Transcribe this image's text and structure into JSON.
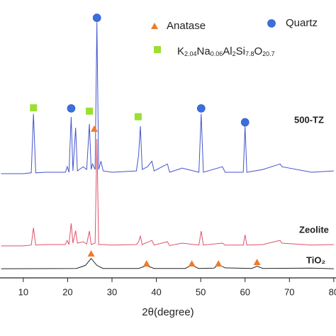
{
  "chart_data": {
    "type": "line",
    "x_label": "2θ(degree)",
    "xlim": [
      4.75,
      80.5
    ],
    "xticks": [
      10,
      20,
      30,
      40,
      50,
      60,
      70,
      80
    ],
    "ylim": [
      0,
      100
    ],
    "series": [
      {
        "name": "500-TZ",
        "color": "#4455cc",
        "x": [
          5,
          10,
          11.8,
          12.3,
          12.8,
          15,
          19.5,
          19.9,
          20.3,
          20.8,
          21.2,
          21.8,
          22.2,
          23.5,
          24.3,
          24.9,
          25.3,
          25.6,
          26.2,
          26.6,
          27,
          27.5,
          28,
          30,
          35.5,
          36,
          36.4,
          36.8,
          38,
          39,
          39.5,
          42.5,
          43,
          45.8,
          49.6,
          50.1,
          50.6,
          54.9,
          55.5,
          59.6,
          60,
          60.4,
          64,
          67.9,
          68.3,
          75,
          80
        ],
        "values": [
          37.5,
          37.5,
          37.8,
          59,
          37.8,
          38,
          38,
          40,
          38,
          57.9,
          38.5,
          54,
          38.5,
          40,
          39,
          55.4,
          39,
          41,
          39,
          92,
          39,
          42,
          38.5,
          38,
          38.5,
          44,
          54.6,
          39,
          40,
          42,
          38.5,
          41,
          38,
          39.5,
          38,
          59,
          38,
          40,
          38,
          38,
          54.6,
          38,
          39,
          41,
          40,
          38,
          38.5
        ]
      },
      {
        "name": "Zeolite",
        "color": "#e0506a",
        "x": [
          5,
          10,
          11.8,
          12.3,
          12.8,
          15,
          19.5,
          19.9,
          20.3,
          20.8,
          21.2,
          21.8,
          22.2,
          23.5,
          24.3,
          24.9,
          25.3,
          26.2,
          26.6,
          27,
          28,
          30,
          35.5,
          36,
          36.4,
          36.8,
          38,
          39,
          39.5,
          42.5,
          43,
          45.8,
          49.6,
          50.1,
          50.6,
          54.9,
          55.5,
          59.6,
          60,
          60.4,
          64,
          67.9,
          68.3,
          75,
          80
        ],
        "values": [
          11.5,
          11.5,
          11.8,
          18,
          11.8,
          12,
          12,
          13.5,
          12,
          19.6,
          12.5,
          17,
          12.5,
          13,
          12.2,
          16.8,
          12,
          12.5,
          50,
          12,
          12,
          11.8,
          12,
          13,
          15,
          12,
          12.8,
          13.5,
          11.8,
          13,
          11.6,
          12.5,
          11.8,
          16.8,
          11.8,
          12.5,
          11.8,
          11.8,
          15.5,
          11.8,
          12,
          13.5,
          12.5,
          11.8,
          12
        ]
      },
      {
        "name": "TiO₂",
        "color": "#222222",
        "x": [
          5,
          22,
          24,
          25.3,
          26.6,
          28,
          36,
          37.8,
          39.5,
          46.5,
          48,
          49.5,
          53,
          54,
          55.5,
          61.5,
          62.7,
          64,
          75,
          80
        ],
        "values": [
          3.3,
          3.4,
          4.5,
          7,
          4.5,
          3.4,
          3.4,
          4.4,
          3.4,
          3.4,
          4.6,
          3.4,
          3.5,
          4.8,
          3.6,
          3.4,
          4.2,
          3.4,
          3.5,
          3.3
        ]
      }
    ],
    "markers": [
      {
        "name": "Anatase",
        "color": "#f07a2a",
        "shape": "triangle",
        "x": [
          25.3,
          37.8,
          48,
          54,
          62.7,
          26
        ],
        "y": [
          8.7,
          5.1,
          5.1,
          5.1,
          5.6,
          53.6
        ]
      },
      {
        "name": "Quartz",
        "color": "#3b6fe0",
        "shape": "circle",
        "x": [
          26.6,
          20.8,
          50.1,
          60
        ],
        "y": [
          93.6,
          61,
          61,
          56
        ]
      },
      {
        "name_parts": [
          "K",
          "2.04",
          "Na",
          "0.06",
          "Al",
          "2",
          "Si",
          "7.8",
          "O",
          "20.7"
        ],
        "color": "#99e033",
        "shape": "square",
        "x": [
          12.3,
          24.9,
          35.9
        ],
        "y": [
          61.2,
          60,
          58
        ]
      }
    ]
  }
}
